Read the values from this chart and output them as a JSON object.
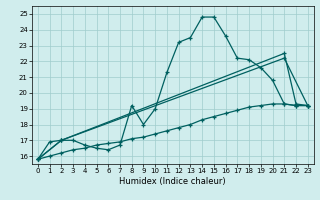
{
  "xlabel": "Humidex (Indice chaleur)",
  "xlim": [
    -0.5,
    23.5
  ],
  "ylim": [
    15.5,
    25.5
  ],
  "yticks": [
    16,
    17,
    18,
    19,
    20,
    21,
    22,
    23,
    24,
    25
  ],
  "xticks": [
    0,
    1,
    2,
    3,
    4,
    5,
    6,
    7,
    8,
    9,
    10,
    11,
    12,
    13,
    14,
    15,
    16,
    17,
    18,
    19,
    20,
    21,
    22,
    23
  ],
  "bg_color": "#d0eded",
  "grid_color": "#a0cccc",
  "line_color": "#006060",
  "line1_x": [
    0,
    1,
    2,
    3,
    4,
    5,
    6,
    7,
    8,
    9,
    10,
    11,
    12,
    13,
    14,
    15,
    16,
    17,
    18,
    19,
    20,
    21,
    22,
    23
  ],
  "line1_y": [
    15.8,
    16.9,
    17.0,
    17.0,
    16.7,
    16.5,
    16.4,
    16.7,
    19.2,
    18.0,
    19.0,
    21.3,
    23.2,
    23.5,
    24.8,
    24.8,
    23.6,
    22.2,
    22.1,
    21.6,
    20.8,
    19.3,
    19.2,
    19.2
  ],
  "line2_x": [
    0,
    1,
    2,
    3,
    4,
    5,
    6,
    7,
    8,
    9,
    10,
    11,
    12,
    13,
    14,
    15,
    16,
    17,
    18,
    19,
    20,
    21,
    22,
    23
  ],
  "line2_y": [
    15.8,
    16.0,
    16.2,
    16.4,
    16.5,
    16.7,
    16.8,
    16.9,
    17.1,
    17.2,
    17.4,
    17.6,
    17.8,
    18.0,
    18.3,
    18.5,
    18.7,
    18.9,
    19.1,
    19.2,
    19.3,
    19.3,
    19.2,
    19.2
  ],
  "line3_x": [
    0,
    2,
    21,
    22,
    23
  ],
  "line3_y": [
    15.8,
    17.0,
    22.5,
    19.3,
    19.2
  ],
  "line4_x": [
    0,
    2,
    21,
    23
  ],
  "line4_y": [
    15.8,
    17.0,
    22.2,
    19.2
  ]
}
